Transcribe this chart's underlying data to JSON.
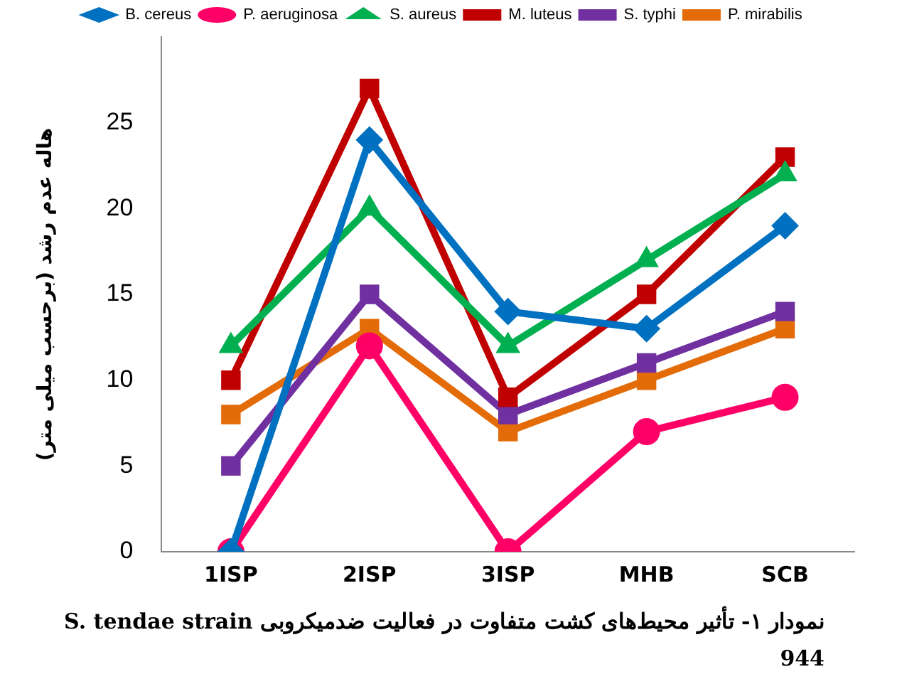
{
  "chart_data": {
    "type": "line",
    "title": "نمودار ۱- تأثیر محیط‌های کشت متفاوت در فعالیت ضدمیکروبی S. tendae strain 944",
    "ylabel": "هاله عدم رشد (برحسب میلی متر)",
    "categories": [
      "1ISP",
      "2ISP",
      "3ISP",
      "MHB",
      "SCB"
    ],
    "ylim": [
      0,
      30
    ],
    "yticks": [
      0,
      5,
      10,
      15,
      20,
      25
    ],
    "grid": false,
    "legend": "top",
    "series": [
      {
        "name": "B. cereus",
        "color": "#0070c0",
        "marker": "diamond",
        "values": [
          0,
          24,
          14,
          13,
          19
        ]
      },
      {
        "name": "P. aeruginosa",
        "color": "#ff0066",
        "marker": "circle",
        "values": [
          0,
          12,
          0,
          7,
          9
        ]
      },
      {
        "name": "S. aureus",
        "color": "#00b050",
        "marker": "triangle",
        "values": [
          12,
          20,
          12,
          17,
          22
        ]
      },
      {
        "name": "M. luteus",
        "color": "#c00000",
        "marker": "square",
        "values": [
          10,
          27,
          9,
          15,
          23
        ]
      },
      {
        "name": "S. typhi",
        "color": "#7030a0",
        "marker": "square",
        "values": [
          5,
          15,
          8,
          11,
          14
        ]
      },
      {
        "name": "P. mirabilis",
        "color": "#e36c09",
        "marker": "square",
        "values": [
          8,
          13,
          7,
          10,
          13
        ]
      }
    ]
  }
}
